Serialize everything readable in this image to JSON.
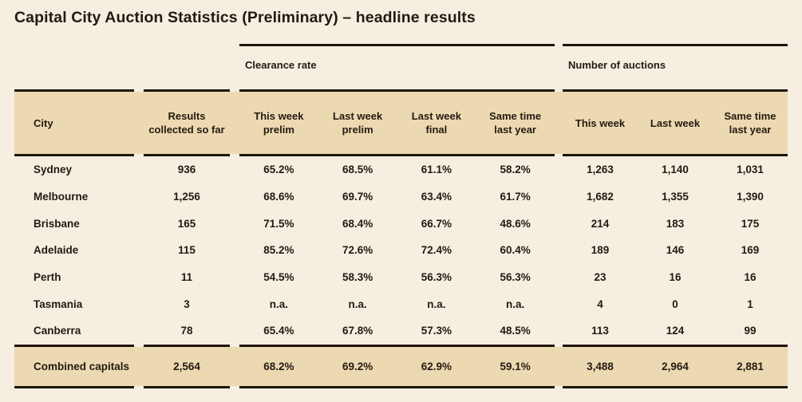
{
  "colors": {
    "page_bg": "#f6eee1",
    "band_bg": "#ecd9b2",
    "text": "#241a10",
    "border": "#1e150c"
  },
  "chart_data": {
    "type": "table",
    "title": "Capital City Auction Statistics (Preliminary) – headline results",
    "column_groups": [
      {
        "label": "",
        "span": 2
      },
      {
        "label": "Clearance rate",
        "span": 4
      },
      {
        "label": "Number of auctions",
        "span": 3
      }
    ],
    "columns": [
      "City",
      "Results collected so far",
      "This week prelim",
      "Last week prelim",
      "Last week final",
      "Same time last year",
      "This week",
      "Last week",
      "Same time last year"
    ],
    "rows": [
      [
        "Sydney",
        "936",
        "65.2%",
        "68.5%",
        "61.1%",
        "58.2%",
        "1,263",
        "1,140",
        "1,031"
      ],
      [
        "Melbourne",
        "1,256",
        "68.6%",
        "69.7%",
        "63.4%",
        "61.7%",
        "1,682",
        "1,355",
        "1,390"
      ],
      [
        "Brisbane",
        "165",
        "71.5%",
        "68.4%",
        "66.7%",
        "48.6%",
        "214",
        "183",
        "175"
      ],
      [
        "Adelaide",
        "115",
        "85.2%",
        "72.6%",
        "72.4%",
        "60.4%",
        "189",
        "146",
        "169"
      ],
      [
        "Perth",
        "11",
        "54.5%",
        "58.3%",
        "56.3%",
        "56.3%",
        "23",
        "16",
        "16"
      ],
      [
        "Tasmania",
        "3",
        "n.a.",
        "n.a.",
        "n.a.",
        "n.a.",
        "4",
        "0",
        "1"
      ],
      [
        "Canberra",
        "78",
        "65.4%",
        "67.8%",
        "57.3%",
        "48.5%",
        "113",
        "124",
        "99"
      ]
    ],
    "total_row": [
      "Combined capitals",
      "2,564",
      "68.2%",
      "69.2%",
      "62.9%",
      "59.1%",
      "3,488",
      "2,964",
      "2,881"
    ]
  }
}
